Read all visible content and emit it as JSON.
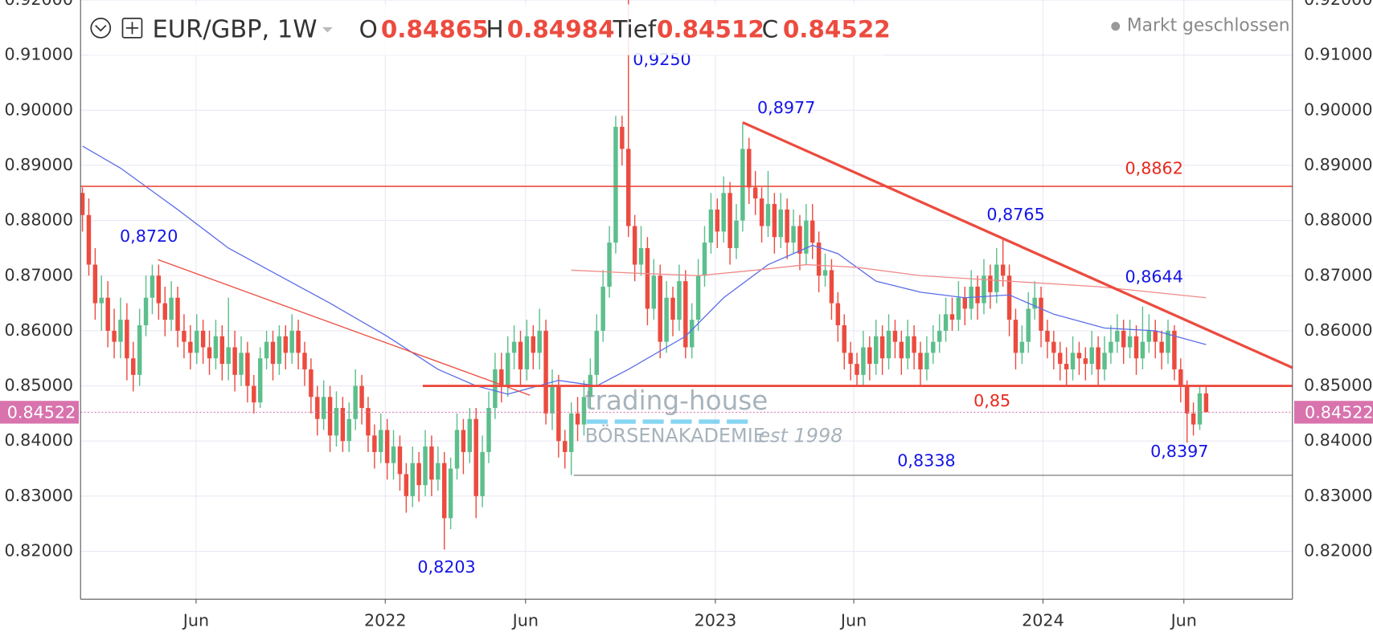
{
  "chart_data": {
    "type": "candlestick",
    "symbol": "EUR/GBP, 1W",
    "ohlc_labels": [
      "O",
      "H",
      "Tief",
      "C"
    ],
    "status": "Markt geschlossen",
    "watermark": [
      "trading-house",
      "BÖRSENAKADEMIE",
      "est 1998"
    ],
    "up_color": "#5cbf8c",
    "down_color": "#ec4b3f",
    "xlim": [
      -0.3,
      190.6
    ],
    "xticks": [
      {
        "value": 17.9,
        "label": "Jun"
      },
      {
        "value": 47.7,
        "label": "2022"
      },
      {
        "value": 69.8,
        "label": "Jun"
      },
      {
        "value": 99.7,
        "label": "2023"
      },
      {
        "value": 121.5,
        "label": "Jun"
      },
      {
        "value": 151.3,
        "label": "2024"
      },
      {
        "value": 173.5,
        "label": "Jun"
      }
    ],
    "ylim": [
      0.8113,
      0.92
    ],
    "yticks": [
      {
        "value": 0.82,
        "label": "0.82000"
      },
      {
        "value": 0.83,
        "label": "0.83000"
      },
      {
        "value": 0.84,
        "label": "0.84000"
      },
      {
        "value": 0.85,
        "label": "0.85000"
      },
      {
        "value": 0.86,
        "label": "0.86000"
      },
      {
        "value": 0.87,
        "label": "0.87000"
      },
      {
        "value": 0.88,
        "label": "0.88000"
      },
      {
        "value": 0.89,
        "label": "0.89000"
      },
      {
        "value": 0.9,
        "label": "0.90000"
      },
      {
        "value": 0.91,
        "label": "0.91000"
      },
      {
        "value": 0.92,
        "label": "0.92000"
      }
    ],
    "grid": true,
    "open": [
      0.885,
      0.881,
      0.872,
      0.865,
      0.866,
      0.86,
      0.858,
      0.862,
      0.855,
      0.852,
      0.861,
      0.866,
      0.87,
      0.865,
      0.862,
      0.866,
      0.86,
      0.858,
      0.856,
      0.86,
      0.857,
      0.855,
      0.859,
      0.854,
      0.857,
      0.852,
      0.856,
      0.85,
      0.847,
      0.855,
      0.858,
      0.854,
      0.859,
      0.856,
      0.86,
      0.856,
      0.853,
      0.848,
      0.844,
      0.848,
      0.841,
      0.846,
      0.84,
      0.844,
      0.85,
      0.846,
      0.841,
      0.838,
      0.842,
      0.836,
      0.839,
      0.834,
      0.83,
      0.836,
      0.832,
      0.839,
      0.833,
      0.836,
      0.826,
      0.835,
      0.842,
      0.838,
      0.844,
      0.83,
      0.838,
      0.846,
      0.853,
      0.85,
      0.856,
      0.858,
      0.853,
      0.859,
      0.856,
      0.86,
      0.845,
      0.85,
      0.84,
      0.838,
      0.845,
      0.843,
      0.848,
      0.852,
      0.86,
      0.868,
      0.876,
      0.897,
      0.893,
      0.879,
      0.872,
      0.875,
      0.864,
      0.87,
      0.858,
      0.866,
      0.862,
      0.869,
      0.857,
      0.862,
      0.87,
      0.876,
      0.882,
      0.878,
      0.885,
      0.875,
      0.88,
      0.893,
      0.886,
      0.884,
      0.879,
      0.883,
      0.877,
      0.882,
      0.876,
      0.879,
      0.874,
      0.88,
      0.876,
      0.87,
      0.871,
      0.865,
      0.861,
      0.856,
      0.854,
      0.852,
      0.857,
      0.854,
      0.859,
      0.855,
      0.86,
      0.858,
      0.855,
      0.859,
      0.856,
      0.853,
      0.856,
      0.858,
      0.86,
      0.863,
      0.862,
      0.866,
      0.864,
      0.868,
      0.865,
      0.87,
      0.867,
      0.872,
      0.87,
      0.862,
      0.856,
      0.858,
      0.864,
      0.866,
      0.86,
      0.858,
      0.856,
      0.854,
      0.853,
      0.856,
      0.855,
      0.854,
      0.857,
      0.853,
      0.856,
      0.858,
      0.86,
      0.857,
      0.859,
      0.855,
      0.858,
      0.86,
      0.858,
      0.856,
      0.86,
      0.853,
      0.85,
      0.845,
      0.843,
      0.84865
    ],
    "high": [
      0.886,
      0.884,
      0.875,
      0.87,
      0.869,
      0.864,
      0.866,
      0.865,
      0.858,
      0.864,
      0.87,
      0.872,
      0.872,
      0.868,
      0.869,
      0.868,
      0.863,
      0.861,
      0.863,
      0.862,
      0.86,
      0.862,
      0.861,
      0.866,
      0.86,
      0.859,
      0.858,
      0.852,
      0.857,
      0.86,
      0.86,
      0.861,
      0.861,
      0.863,
      0.862,
      0.858,
      0.855,
      0.85,
      0.851,
      0.85,
      0.849,
      0.848,
      0.847,
      0.853,
      0.852,
      0.848,
      0.843,
      0.845,
      0.844,
      0.842,
      0.841,
      0.836,
      0.839,
      0.838,
      0.842,
      0.841,
      0.839,
      0.838,
      0.837,
      0.845,
      0.844,
      0.846,
      0.846,
      0.841,
      0.849,
      0.856,
      0.856,
      0.859,
      0.861,
      0.86,
      0.862,
      0.861,
      0.864,
      0.862,
      0.853,
      0.852,
      0.842,
      0.847,
      0.848,
      0.851,
      0.855,
      0.863,
      0.871,
      0.879,
      0.899,
      0.899,
      0.925,
      0.881,
      0.879,
      0.877,
      0.873,
      0.872,
      0.869,
      0.868,
      0.872,
      0.871,
      0.865,
      0.873,
      0.879,
      0.885,
      0.884,
      0.888,
      0.887,
      0.883,
      0.8977,
      0.895,
      0.889,
      0.886,
      0.889,
      0.885,
      0.885,
      0.884,
      0.882,
      0.881,
      0.883,
      0.883,
      0.878,
      0.874,
      0.873,
      0.867,
      0.863,
      0.858,
      0.856,
      0.86,
      0.859,
      0.862,
      0.861,
      0.863,
      0.862,
      0.86,
      0.862,
      0.861,
      0.858,
      0.859,
      0.861,
      0.863,
      0.866,
      0.866,
      0.869,
      0.868,
      0.871,
      0.87,
      0.873,
      0.872,
      0.875,
      0.8765,
      0.872,
      0.864,
      0.861,
      0.867,
      0.869,
      0.868,
      0.862,
      0.86,
      0.858,
      0.857,
      0.859,
      0.858,
      0.857,
      0.86,
      0.859,
      0.859,
      0.861,
      0.863,
      0.862,
      0.862,
      0.861,
      0.8644,
      0.863,
      0.862,
      0.86,
      0.862,
      0.861,
      0.855,
      0.851,
      0.847,
      0.85,
      0.84984
    ],
    "low": [
      0.878,
      0.87,
      0.862,
      0.86,
      0.857,
      0.855,
      0.855,
      0.851,
      0.849,
      0.85,
      0.859,
      0.863,
      0.862,
      0.859,
      0.86,
      0.857,
      0.855,
      0.853,
      0.854,
      0.854,
      0.852,
      0.853,
      0.851,
      0.851,
      0.849,
      0.85,
      0.847,
      0.845,
      0.846,
      0.853,
      0.851,
      0.852,
      0.853,
      0.854,
      0.853,
      0.85,
      0.845,
      0.841,
      0.842,
      0.838,
      0.839,
      0.838,
      0.838,
      0.842,
      0.843,
      0.838,
      0.835,
      0.836,
      0.833,
      0.833,
      0.831,
      0.827,
      0.828,
      0.829,
      0.83,
      0.83,
      0.831,
      0.8203,
      0.824,
      0.833,
      0.834,
      0.836,
      0.826,
      0.828,
      0.836,
      0.844,
      0.847,
      0.848,
      0.853,
      0.85,
      0.851,
      0.853,
      0.853,
      0.843,
      0.842,
      0.837,
      0.835,
      0.8338,
      0.84,
      0.841,
      0.846,
      0.85,
      0.858,
      0.866,
      0.874,
      0.89,
      0.877,
      0.869,
      0.87,
      0.861,
      0.862,
      0.855,
      0.856,
      0.859,
      0.86,
      0.855,
      0.855,
      0.86,
      0.868,
      0.874,
      0.875,
      0.876,
      0.872,
      0.873,
      0.878,
      0.883,
      0.881,
      0.876,
      0.877,
      0.874,
      0.875,
      0.873,
      0.874,
      0.871,
      0.872,
      0.873,
      0.867,
      0.868,
      0.862,
      0.858,
      0.853,
      0.851,
      0.85,
      0.85,
      0.851,
      0.852,
      0.852,
      0.853,
      0.855,
      0.852,
      0.853,
      0.853,
      0.85,
      0.851,
      0.854,
      0.856,
      0.858,
      0.86,
      0.86,
      0.861,
      0.862,
      0.862,
      0.863,
      0.864,
      0.865,
      0.868,
      0.859,
      0.853,
      0.854,
      0.856,
      0.862,
      0.857,
      0.855,
      0.853,
      0.851,
      0.85,
      0.851,
      0.852,
      0.851,
      0.852,
      0.85,
      0.851,
      0.854,
      0.856,
      0.854,
      0.855,
      0.852,
      0.853,
      0.856,
      0.855,
      0.853,
      0.854,
      0.851,
      0.847,
      0.8397,
      0.841,
      0.842,
      0.84512
    ],
    "close": [
      0.881,
      0.872,
      0.865,
      0.866,
      0.86,
      0.858,
      0.862,
      0.855,
      0.852,
      0.861,
      0.866,
      0.87,
      0.865,
      0.862,
      0.866,
      0.86,
      0.858,
      0.856,
      0.86,
      0.857,
      0.855,
      0.859,
      0.854,
      0.857,
      0.852,
      0.856,
      0.85,
      0.847,
      0.855,
      0.858,
      0.854,
      0.859,
      0.856,
      0.86,
      0.856,
      0.853,
      0.848,
      0.844,
      0.848,
      0.841,
      0.846,
      0.84,
      0.844,
      0.85,
      0.846,
      0.841,
      0.838,
      0.842,
      0.836,
      0.839,
      0.834,
      0.83,
      0.836,
      0.832,
      0.839,
      0.833,
      0.836,
      0.826,
      0.835,
      0.842,
      0.838,
      0.844,
      0.83,
      0.838,
      0.846,
      0.853,
      0.85,
      0.856,
      0.858,
      0.853,
      0.859,
      0.856,
      0.86,
      0.845,
      0.85,
      0.84,
      0.838,
      0.845,
      0.843,
      0.848,
      0.852,
      0.86,
      0.868,
      0.876,
      0.897,
      0.893,
      0.879,
      0.872,
      0.875,
      0.864,
      0.87,
      0.858,
      0.866,
      0.862,
      0.869,
      0.857,
      0.862,
      0.87,
      0.876,
      0.882,
      0.878,
      0.885,
      0.875,
      0.88,
      0.893,
      0.886,
      0.884,
      0.879,
      0.883,
      0.877,
      0.882,
      0.876,
      0.879,
      0.874,
      0.88,
      0.876,
      0.87,
      0.871,
      0.865,
      0.861,
      0.856,
      0.854,
      0.852,
      0.857,
      0.854,
      0.859,
      0.855,
      0.86,
      0.858,
      0.855,
      0.859,
      0.856,
      0.853,
      0.856,
      0.858,
      0.86,
      0.863,
      0.862,
      0.866,
      0.864,
      0.868,
      0.865,
      0.87,
      0.867,
      0.872,
      0.87,
      0.862,
      0.856,
      0.858,
      0.864,
      0.866,
      0.86,
      0.858,
      0.856,
      0.854,
      0.853,
      0.856,
      0.855,
      0.854,
      0.857,
      0.853,
      0.856,
      0.858,
      0.86,
      0.857,
      0.859,
      0.855,
      0.858,
      0.86,
      0.858,
      0.856,
      0.86,
      0.853,
      0.85,
      0.845,
      0.843,
      0.84865,
      0.84522
    ],
    "moving_averages": [
      {
        "color": "#5b6ee8",
        "x": [
          0,
          6,
          15,
          23,
          31,
          39,
          48,
          56,
          62,
          67,
          75,
          81,
          86,
          95,
          101,
          108,
          115,
          119,
          125,
          132,
          139,
          146,
          153,
          161,
          169,
          177
        ],
        "values": [
          0.8935,
          0.8895,
          0.882,
          0.875,
          0.87,
          0.865,
          0.859,
          0.853,
          0.85,
          0.8485,
          0.851,
          0.85,
          0.853,
          0.859,
          0.866,
          0.872,
          0.8755,
          0.874,
          0.869,
          0.867,
          0.866,
          0.8665,
          0.863,
          0.8605,
          0.86,
          0.8575
        ]
      },
      {
        "color": "#f08a8a",
        "x": [
          77,
          86,
          97,
          106,
          114,
          122,
          132,
          146,
          160,
          177
        ],
        "values": [
          0.871,
          0.8705,
          0.87,
          0.871,
          0.872,
          0.8715,
          0.87,
          0.869,
          0.868,
          0.866
        ]
      }
    ],
    "trendlines": [
      {
        "color": "#ec4b3f",
        "width": 1.2,
        "x": [
          11.9,
          70.5
        ],
        "values": [
          0.8729,
          0.8483
        ]
      },
      {
        "color": "#ec4b3f",
        "width": 3,
        "x": [
          104,
          190.6
        ],
        "values": [
          0.8978,
          0.8533
        ]
      }
    ],
    "hlines": [
      {
        "value": 0.8862,
        "from": -0.3,
        "color": "#ec4b3f",
        "label": "0,8862",
        "label_color": "#e8281c"
      },
      {
        "value": 0.85,
        "from": 53.6,
        "color": "#ec4b3f",
        "label": "0,85",
        "label_color": "#e8281c"
      },
      {
        "value": 0.8338,
        "from": 77.4,
        "color": "#9a9a9a",
        "label": "0,8338",
        "label_color": "#1414e6"
      }
    ],
    "annotations": [
      {
        "text": "0,9250",
        "color": "#1414e6"
      },
      {
        "text": "0,8977",
        "color": "#1414e6"
      },
      {
        "text": "0,8720",
        "color": "#1414e6"
      },
      {
        "text": "0,8203",
        "color": "#1414e6"
      },
      {
        "text": "0,8765",
        "color": "#1414e6"
      },
      {
        "text": "0,8644",
        "color": "#1414e6"
      },
      {
        "text": "0,8397",
        "color": "#1414e6"
      }
    ],
    "price_tag_color": "#d873ad"
  }
}
